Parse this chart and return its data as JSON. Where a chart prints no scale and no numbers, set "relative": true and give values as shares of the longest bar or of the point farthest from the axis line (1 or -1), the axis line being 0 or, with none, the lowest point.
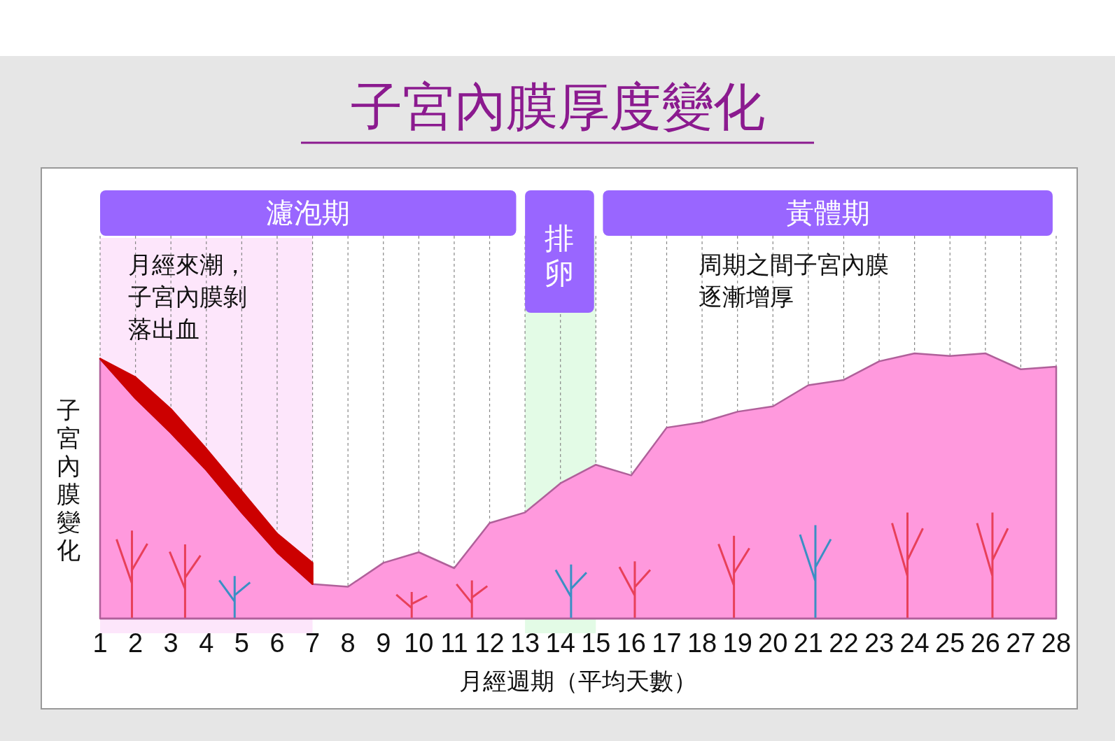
{
  "chart_data": {
    "type": "area",
    "title": "子宮內膜厚度變化",
    "xlabel": "月經週期（平均天數）",
    "ylabel": "子宮內膜變化",
    "relative": true,
    "stacked": true,
    "x": [
      1,
      2,
      3,
      4,
      5,
      6,
      7,
      8,
      9,
      10,
      11,
      12,
      13,
      14,
      15,
      16,
      17,
      18,
      19,
      20,
      21,
      22,
      23,
      24,
      25,
      26,
      27,
      28
    ],
    "series": [
      {
        "color": "#ff99dd",
        "values": [
          0.98,
          0.83,
          0.7,
          0.56,
          0.4,
          0.25,
          0.13,
          0.12,
          0.21,
          0.25,
          0.19,
          0.36,
          0.4,
          0.51,
          0.58,
          0.54,
          0.72,
          0.74,
          0.78,
          0.8,
          0.88,
          0.9,
          0.97,
          1.0,
          0.99,
          1.0,
          0.94,
          0.95
        ]
      },
      {
        "color": "#cc0000",
        "values": [
          0,
          0.08,
          0.09,
          0.08,
          0.08,
          0.07,
          0.08,
          null,
          null,
          null,
          null,
          null,
          null,
          null,
          null,
          null,
          null,
          null,
          null,
          null,
          null,
          null,
          null,
          null,
          null,
          null,
          null,
          null
        ]
      }
    ],
    "xlim": [
      1,
      28
    ],
    "xticks": [
      1,
      2,
      3,
      4,
      5,
      6,
      7,
      8,
      9,
      10,
      11,
      12,
      13,
      14,
      15,
      16,
      17,
      18,
      19,
      20,
      21,
      22,
      23,
      24,
      25,
      26,
      27,
      28
    ],
    "grid": "x",
    "line_style": "dashed",
    "bands": [
      {
        "axis": "x",
        "from": 1,
        "to": 7,
        "color": "#fde6fb"
      },
      {
        "axis": "x",
        "from": 13,
        "to": 15,
        "color": "#e3fbe6"
      }
    ],
    "annotations": [
      "濾泡期",
      "排卵",
      "黃體期",
      "月經來潮，子宮內膜剝落出血",
      "周期之間子宮內膜逐漸增厚"
    ]
  }
}
